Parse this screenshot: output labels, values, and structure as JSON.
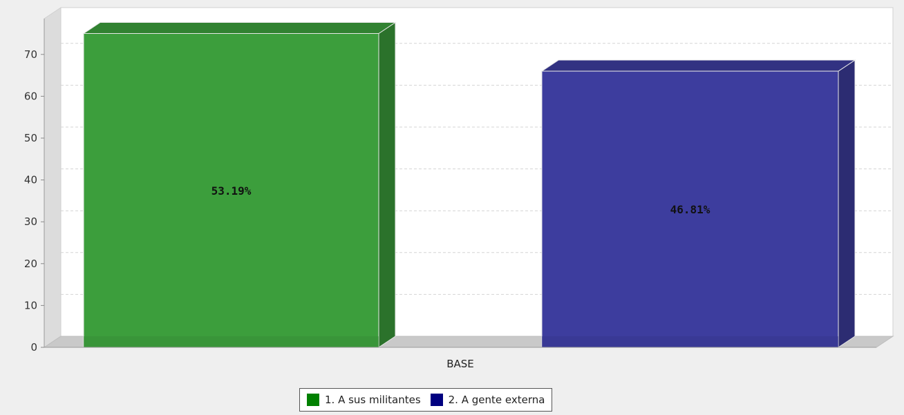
{
  "chart_data": {
    "type": "bar",
    "categories": [
      "BASE"
    ],
    "series": [
      {
        "name": "1. A sus militantes",
        "values": [
          75
        ],
        "label": "53.19%",
        "color": "#3c9e3c",
        "legend_color": "#008000"
      },
      {
        "name": "2. A gente externa",
        "values": [
          66
        ],
        "label": "46.81%",
        "color": "#3d3d9e",
        "legend_color": "#000080"
      }
    ],
    "yticks": [
      0,
      10,
      20,
      30,
      40,
      50,
      60,
      70
    ],
    "ylim": [
      0,
      77
    ],
    "grid": true,
    "legend_position": "bottom-center",
    "three_d": true
  }
}
